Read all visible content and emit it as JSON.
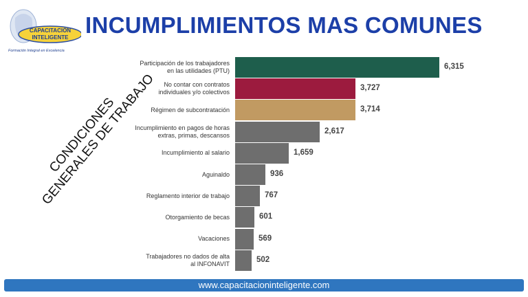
{
  "logo": {
    "line1": "CAPACITACIÓN",
    "line2": "INTELIGENTE",
    "tagline": "Formación Integral en Excelencia"
  },
  "title": "INCUMPLIMIENTOS MAS COMUNES",
  "side_label": {
    "line1": "CONDICIONES",
    "line2": "GENERALES DE TRABAJO"
  },
  "chart_data": {
    "type": "bar",
    "orientation": "horizontal",
    "categories": [
      [
        "Participación de los trabajadores",
        "en las utilidades (PTU)"
      ],
      [
        "No contar con contratos",
        "individuales y/o colectivos"
      ],
      [
        "Régimen de subcontratación"
      ],
      [
        "Incumplimiento en pagos de horas",
        "extras, primas, descansos"
      ],
      [
        "Incumplimiento al salario"
      ],
      [
        "Aguinaldo"
      ],
      [
        "Reglamento interior de trabajo"
      ],
      [
        "Otorgamiento de becas"
      ],
      [
        "Vacaciones"
      ],
      [
        "Trabajadores no dados de alta",
        "al INFONAVIT"
      ]
    ],
    "values": [
      6315,
      3727,
      3714,
      2617,
      1659,
      936,
      767,
      601,
      569,
      502
    ],
    "value_labels": [
      "6,315",
      "3,727",
      "3,714",
      "2,617",
      "1,659",
      "936",
      "767",
      "601",
      "569",
      "502"
    ],
    "colors": [
      "#1e5e4c",
      "#9c1b3e",
      "#c19a62",
      "#6e6e6e",
      "#6e6e6e",
      "#6e6e6e",
      "#6e6e6e",
      "#6e6e6e",
      "#6e6e6e",
      "#6e6e6e"
    ],
    "xlim": [
      0,
      6315
    ]
  },
  "footer": {
    "url": "www.capacitacioninteligente.com"
  }
}
